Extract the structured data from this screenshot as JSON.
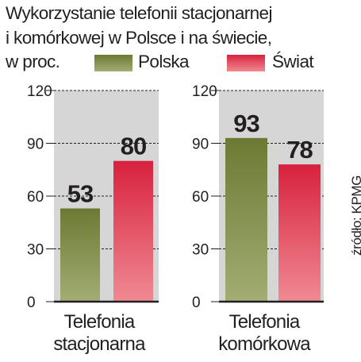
{
  "title": {
    "line1": "Wykorzystanie telefonii stacjonarnej",
    "line2": "i komórkowej w Polsce i na świecie,",
    "line3": "w proc."
  },
  "source": "źródło: KPMG",
  "colors": {
    "polska_top": "#6b7a33",
    "polska_bottom": "#a3ad74",
    "swiat_top": "#d8213f",
    "swiat_bottom": "#f08a92",
    "panel": "#d6d6d6"
  },
  "chart_data": {
    "type": "bar",
    "categories": [
      "Telefonia stacjonarna",
      "Telefonia komórkowa"
    ],
    "category_lines": [
      [
        "Telefonia",
        "stacjonarna"
      ],
      [
        "Telefonia",
        "komórkowa"
      ]
    ],
    "series": [
      {
        "name": "Polska",
        "values": [
          53,
          93
        ]
      },
      {
        "name": "Świat",
        "values": [
          80,
          78
        ]
      }
    ],
    "ylim": [
      0,
      120
    ],
    "yticks": [
      0,
      30,
      60,
      90,
      120
    ],
    "ytick_labels": [
      "0",
      "30",
      "60",
      "90",
      "120"
    ],
    "grid": true,
    "legend": "top",
    "xlabel": "",
    "ylabel": ""
  }
}
